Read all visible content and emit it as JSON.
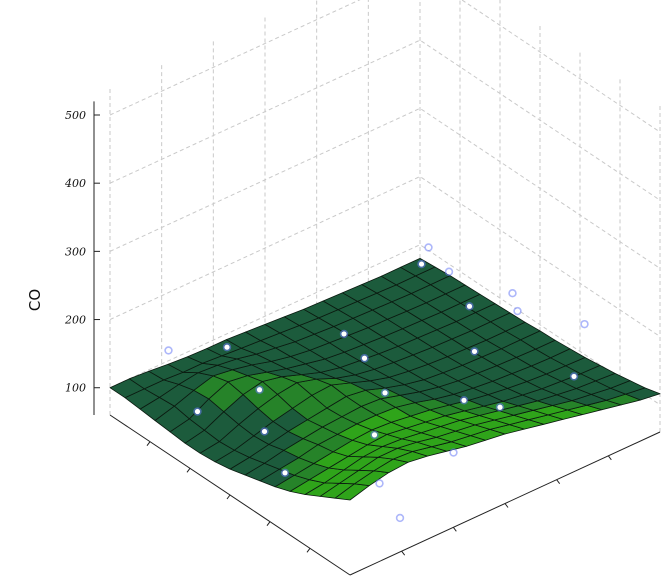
{
  "chart_data": {
    "type": "surface3d",
    "title": "",
    "zlabel": "CO",
    "z_ticks": [
      "100",
      "200",
      "300",
      "400",
      "500"
    ],
    "z_tick_values": [
      100,
      200,
      300,
      400,
      500
    ],
    "zlim": [
      60,
      500
    ],
    "grid": true,
    "surface_colors": {
      "high": "#2fa41a",
      "low": "#1c5b3c",
      "edge": "#0b1a10",
      "point": "#ffffff",
      "point_halo": "#6a7cf5"
    },
    "grid_size": 16,
    "surface_z": [
      [
        100,
        100,
        98,
        95,
        93,
        92,
        92,
        90,
        88,
        86,
        84,
        83,
        82,
        81,
        80,
        80,
        80
      ],
      [
        100,
        100,
        100,
        98,
        98,
        96,
        94,
        92,
        90,
        88,
        86,
        85,
        84,
        83,
        82,
        82,
        82
      ],
      [
        98,
        102,
        108,
        112,
        110,
        106,
        100,
        96,
        92,
        90,
        88,
        87,
        86,
        85,
        84,
        84,
        84
      ],
      [
        96,
        104,
        114,
        122,
        118,
        112,
        104,
        98,
        94,
        92,
        90,
        88,
        87,
        86,
        85,
        85,
        85
      ],
      [
        94,
        100,
        116,
        128,
        124,
        116,
        108,
        102,
        96,
        93,
        91,
        89,
        88,
        87,
        86,
        86,
        86
      ],
      [
        92,
        98,
        112,
        124,
        130,
        124,
        114,
        104,
        98,
        95,
        92,
        90,
        89,
        88,
        87,
        87,
        87
      ],
      [
        92,
        96,
        108,
        118,
        126,
        130,
        122,
        110,
        102,
        97,
        94,
        92,
        90,
        89,
        88,
        88,
        88
      ],
      [
        94,
        98,
        106,
        114,
        120,
        126,
        128,
        118,
        108,
        100,
        96,
        93,
        91,
        90,
        89,
        89,
        89
      ],
      [
        98,
        102,
        108,
        114,
        118,
        122,
        126,
        122,
        112,
        104,
        98,
        95,
        93,
        92,
        91,
        91,
        91
      ],
      [
        104,
        108,
        114,
        118,
        122,
        124,
        126,
        124,
        116,
        108,
        102,
        98,
        96,
        94,
        93,
        92,
        92
      ],
      [
        110,
        114,
        118,
        124,
        126,
        128,
        128,
        126,
        120,
        112,
        106,
        102,
        99,
        97,
        95,
        94,
        94
      ],
      [
        116,
        120,
        124,
        128,
        132,
        134,
        132,
        128,
        124,
        118,
        112,
        107,
        103,
        100,
        98,
        97,
        96
      ],
      [
        124,
        128,
        132,
        136,
        140,
        142,
        138,
        134,
        130,
        124,
        118,
        112,
        108,
        104,
        102,
        100,
        99
      ],
      [
        134,
        138,
        144,
        150,
        152,
        150,
        146,
        142,
        138,
        132,
        126,
        120,
        114,
        110,
        106,
        104,
        102
      ],
      [
        146,
        152,
        158,
        164,
        164,
        160,
        154,
        150,
        146,
        140,
        134,
        128,
        122,
        116,
        112,
        108,
        106
      ],
      [
        158,
        166,
        172,
        176,
        174,
        168,
        162,
        158,
        154,
        148,
        142,
        136,
        130,
        124,
        118,
        114,
        110
      ],
      [
        170,
        178,
        184,
        186,
        182,
        176,
        170,
        166,
        162,
        156,
        150,
        144,
        138,
        132,
        126,
        120,
        116
      ]
    ],
    "points": [
      {
        "x": 0.1,
        "y": 0.95,
        "z": 130
      },
      {
        "x": 0.25,
        "y": 0.9,
        "z": 140
      },
      {
        "x": 0.4,
        "y": 0.85,
        "z": 135
      },
      {
        "x": 0.55,
        "y": 0.75,
        "z": 125
      },
      {
        "x": 0.7,
        "y": 0.6,
        "z": 120
      },
      {
        "x": 0.85,
        "y": 0.45,
        "z": 110
      },
      {
        "x": 0.2,
        "y": 0.6,
        "z": 100
      },
      {
        "x": 0.35,
        "y": 0.55,
        "z": 110
      },
      {
        "x": 0.5,
        "y": 0.5,
        "z": 105
      },
      {
        "x": 0.65,
        "y": 0.35,
        "z": 110
      },
      {
        "x": 0.8,
        "y": 0.25,
        "z": 95
      },
      {
        "x": 0.95,
        "y": 0.2,
        "z": 90
      },
      {
        "x": 0.1,
        "y": 0.3,
        "z": 120
      },
      {
        "x": 0.3,
        "y": 0.25,
        "z": 115
      },
      {
        "x": 0.45,
        "y": 0.15,
        "z": 110
      },
      {
        "x": 0.6,
        "y": 0.1,
        "z": 95
      },
      {
        "x": 0.3,
        "y": 0.05,
        "z": 125
      },
      {
        "x": 0.05,
        "y": 0.15,
        "z": 135
      },
      {
        "x": 0.2,
        "y": 0.85,
        "z": 150
      },
      {
        "x": 0.45,
        "y": 0.95,
        "z": 145
      },
      {
        "x": 0.75,
        "y": 0.95,
        "z": 170
      },
      {
        "x": 0.6,
        "y": 0.85,
        "z": 175
      },
      {
        "x": 0.9,
        "y": 0.8,
        "z": 160
      },
      {
        "x": 0.85,
        "y": 0.6,
        "z": 145
      }
    ]
  }
}
